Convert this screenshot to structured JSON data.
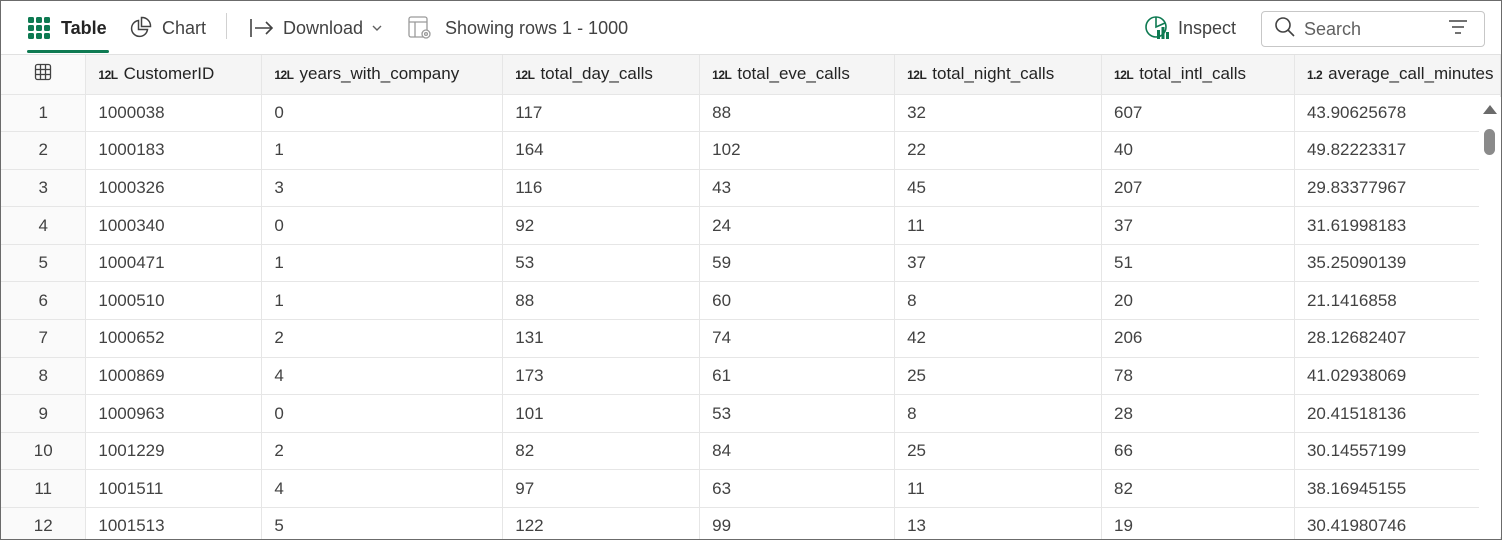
{
  "toolbar": {
    "table_label": "Table",
    "chart_label": "Chart",
    "download_label": "Download",
    "rows_label": "Showing rows 1 - 1000",
    "inspect_label": "Inspect",
    "search_placeholder": "Search"
  },
  "columns": [
    {
      "type": "12L",
      "name": "CustomerID"
    },
    {
      "type": "12L",
      "name": "years_with_company"
    },
    {
      "type": "12L",
      "name": "total_day_calls"
    },
    {
      "type": "12L",
      "name": "total_eve_calls"
    },
    {
      "type": "12L",
      "name": "total_night_calls"
    },
    {
      "type": "12L",
      "name": "total_intl_calls"
    },
    {
      "type": "1.2",
      "name": "average_call_minutes"
    }
  ],
  "rows": [
    [
      "1",
      "1000038",
      "0",
      "117",
      "88",
      "32",
      "607",
      "43.90625678"
    ],
    [
      "2",
      "1000183",
      "1",
      "164",
      "102",
      "22",
      "40",
      "49.82223317"
    ],
    [
      "3",
      "1000326",
      "3",
      "116",
      "43",
      "45",
      "207",
      "29.83377967"
    ],
    [
      "4",
      "1000340",
      "0",
      "92",
      "24",
      "11",
      "37",
      "31.61998183"
    ],
    [
      "5",
      "1000471",
      "1",
      "53",
      "59",
      "37",
      "51",
      "35.25090139"
    ],
    [
      "6",
      "1000510",
      "1",
      "88",
      "60",
      "8",
      "20",
      "21.1416858"
    ],
    [
      "7",
      "1000652",
      "2",
      "131",
      "74",
      "42",
      "206",
      "28.12682407"
    ],
    [
      "8",
      "1000869",
      "4",
      "173",
      "61",
      "25",
      "78",
      "41.02938069"
    ],
    [
      "9",
      "1000963",
      "0",
      "101",
      "53",
      "8",
      "28",
      "20.41518136"
    ],
    [
      "10",
      "1001229",
      "2",
      "82",
      "84",
      "25",
      "66",
      "30.14557199"
    ],
    [
      "11",
      "1001511",
      "4",
      "97",
      "63",
      "11",
      "82",
      "38.16945155"
    ],
    [
      "12",
      "1001513",
      "5",
      "122",
      "99",
      "13",
      "19",
      "30.41980746"
    ]
  ],
  "colors": {
    "accent": "#0e7a52",
    "header_bg": "#f5f5f5",
    "border": "#e6e6e6"
  }
}
